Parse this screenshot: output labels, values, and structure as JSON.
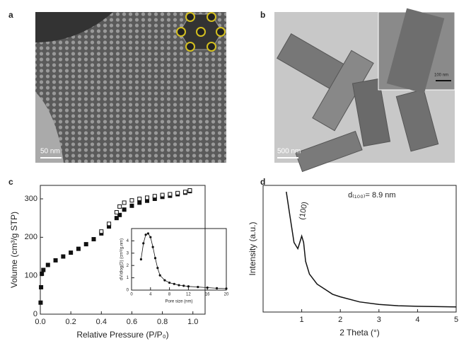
{
  "panels": [
    {
      "label": "a",
      "scale_bar": "50 nm"
    },
    {
      "label": "b",
      "scale_bar": "500 nm",
      "inset_scale_bar": "100 nm"
    }
  ],
  "chart_data": [
    {
      "type": "scatter",
      "panel_label": "c",
      "x_label": "Relative Pressure (P/P₀)",
      "y_label": "Volume (cm³/g STP)",
      "xlim": [
        0,
        1.08
      ],
      "ylim": [
        0,
        335
      ],
      "xticks": [
        {
          "value": 0,
          "label": "0.0"
        },
        0.2,
        0.4,
        0.6,
        0.8,
        {
          "value": 1,
          "label": "1.0"
        }
      ],
      "yticks": [
        0,
        100,
        200,
        300
      ],
      "series": [
        {
          "marker": "filled-square",
          "color": "#111111",
          "x": [
            0.002,
            0.005,
            0.01,
            0.02,
            0.05,
            0.1,
            0.15,
            0.2,
            0.25,
            0.3,
            0.35,
            0.4,
            0.45,
            0.5,
            0.52,
            0.55,
            0.6,
            0.65,
            0.7,
            0.75,
            0.8,
            0.85,
            0.9,
            0.95,
            0.98
          ],
          "values": [
            30,
            70,
            105,
            115,
            128,
            140,
            150,
            160,
            170,
            182,
            195,
            210,
            228,
            250,
            258,
            272,
            282,
            290,
            295,
            300,
            305,
            308,
            312,
            316,
            320
          ]
        },
        {
          "marker": "open-square",
          "color": "#111111",
          "x": [
            0.98,
            0.95,
            0.9,
            0.85,
            0.8,
            0.75,
            0.7,
            0.65,
            0.6,
            0.55,
            0.52,
            0.5,
            0.45,
            0.4
          ],
          "values": [
            322,
            318,
            315,
            312,
            310,
            307,
            303,
            300,
            296,
            290,
            280,
            265,
            235,
            215
          ]
        }
      ]
    },
    {
      "type": "line",
      "x_label": "Pore size (nm)",
      "y_label": "dV/dlog(D) (cm³/g.nm)",
      "xlim": [
        0,
        20
      ],
      "ylim": [
        0,
        5
      ],
      "xticks": [
        0,
        4,
        8,
        12,
        16,
        20
      ],
      "yticks": [
        0,
        1,
        2,
        3,
        4
      ],
      "series": [
        {
          "marker": "filled-circle",
          "color": "#111111",
          "x": [
            2,
            2.5,
            3,
            3.5,
            4,
            4.5,
            5,
            5.5,
            6,
            7,
            8,
            9,
            10,
            11,
            12,
            14,
            16,
            18,
            20
          ],
          "values": [
            2.5,
            3.8,
            4.5,
            4.6,
            4.3,
            3.5,
            2.6,
            1.8,
            1.2,
            0.8,
            0.6,
            0.5,
            0.4,
            0.35,
            0.3,
            0.25,
            0.2,
            0.15,
            0.12
          ]
        }
      ]
    },
    {
      "type": "line",
      "panel_label": "d",
      "x_label": "2 Theta (°)",
      "y_label": "Intensity (a.u.)",
      "xlim": [
        0,
        5
      ],
      "ylim": [
        0,
        100
      ],
      "xticks": [
        1,
        2,
        3,
        4,
        5
      ],
      "annotations": [
        "(100)",
        "d₍₁₀₀₎= 8.9 nm"
      ],
      "series": [
        {
          "color": "#111111",
          "x": [
            0.6,
            0.7,
            0.8,
            0.9,
            0.95,
            1.0,
            1.05,
            1.1,
            1.2,
            1.4,
            1.6,
            1.8,
            2.0,
            2.5,
            3,
            3.5,
            4,
            5
          ],
          "values": [
            95,
            75,
            55,
            50,
            55,
            60,
            55,
            40,
            30,
            22,
            18,
            14,
            12,
            8,
            6,
            5,
            4.5,
            4
          ]
        }
      ]
    }
  ]
}
